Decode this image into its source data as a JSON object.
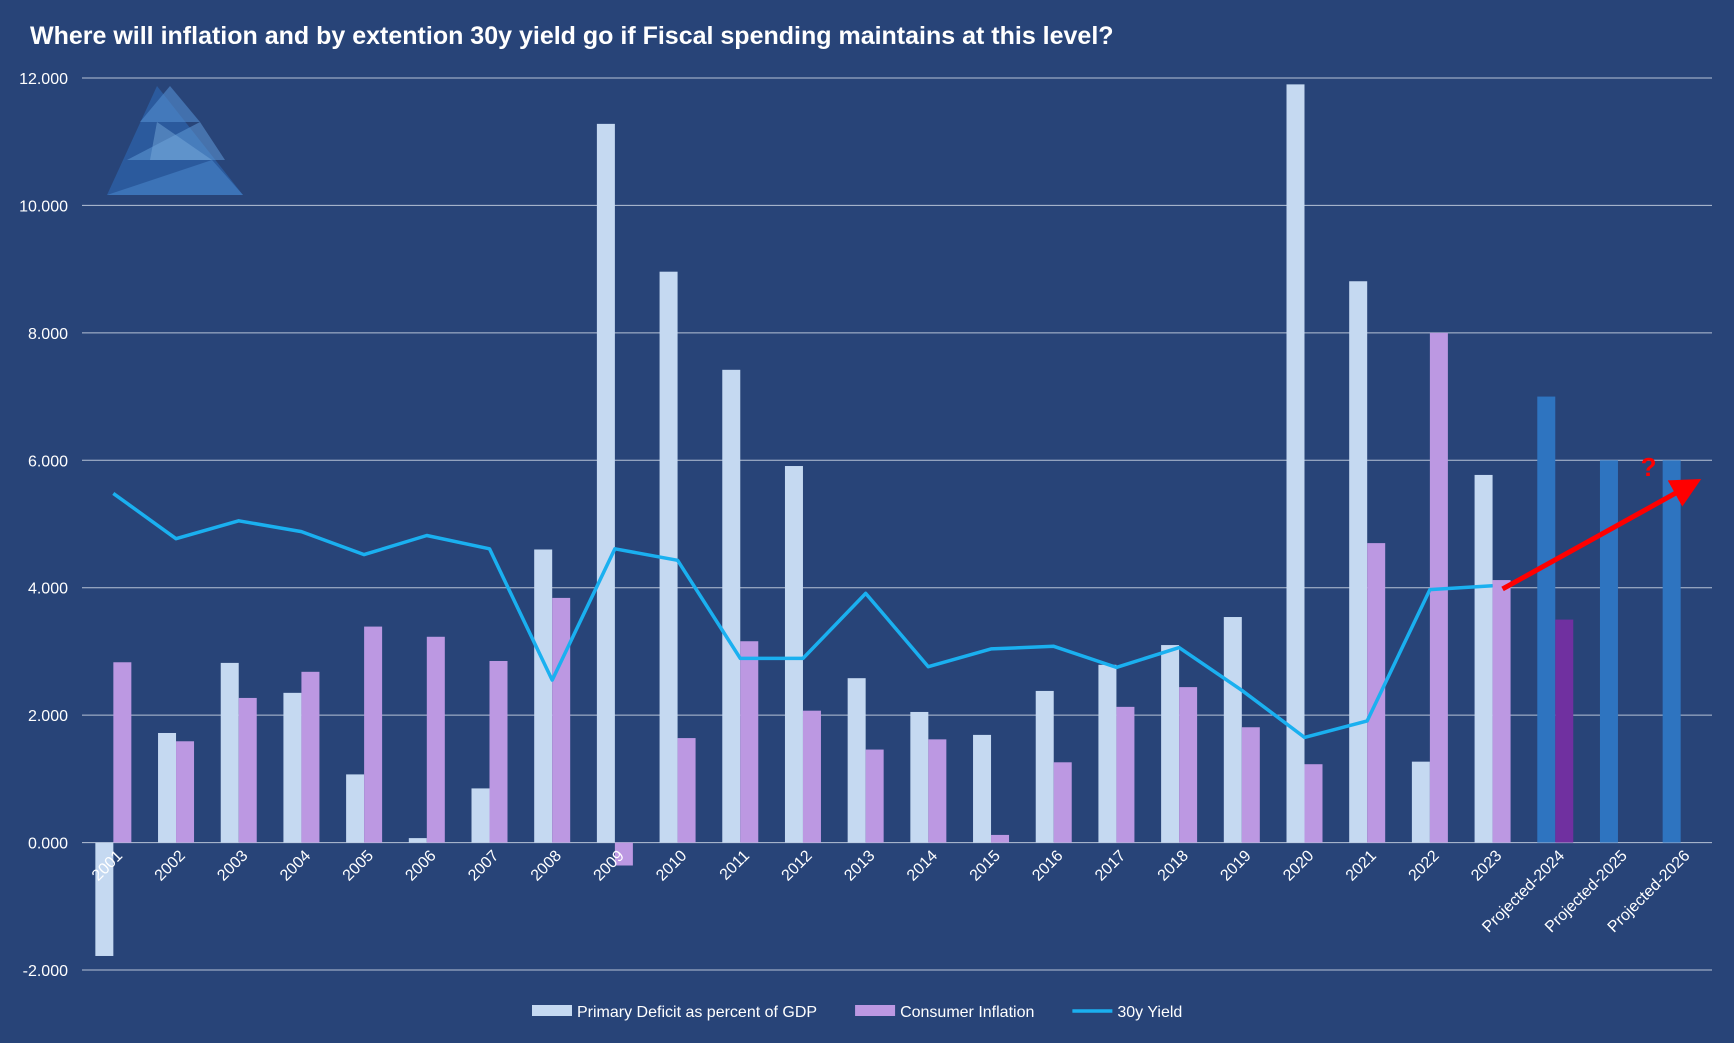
{
  "chart_data": {
    "type": "bar",
    "title": "Where will inflation and by extention 30y yield go if Fiscal spending maintains at this level?",
    "xlabel": "",
    "ylabel": "",
    "ylim": [
      -2,
      12
    ],
    "yticks": [
      -2,
      0,
      2,
      4,
      6,
      8,
      10,
      12
    ],
    "ytick_labels": [
      "-2.000",
      "0.000",
      "2.000",
      "4.000",
      "6.000",
      "8.000",
      "10.000",
      "12.000"
    ],
    "grid": true,
    "legend_position": "bottom",
    "categories": [
      "2001",
      "2002",
      "2003",
      "2004",
      "2005",
      "2006",
      "2007",
      "2008",
      "2009",
      "2010",
      "2011",
      "2012",
      "2013",
      "2014",
      "2015",
      "2016",
      "2017",
      "2018",
      "2019",
      "2020",
      "2021",
      "2022",
      "2023",
      "Projected-2024",
      "Projected-2025",
      "Projected-2026"
    ],
    "series": [
      {
        "name": "Primary Deficit as percent of GDP",
        "type": "bar",
        "color": "#c5d9f1",
        "projected_color": "#2e74c0",
        "values": [
          -1.78,
          1.72,
          2.82,
          2.35,
          1.07,
          0.07,
          0.85,
          4.6,
          11.28,
          8.96,
          7.42,
          5.91,
          2.58,
          2.05,
          1.69,
          2.38,
          2.79,
          3.1,
          3.54,
          11.9,
          8.81,
          1.27,
          5.77,
          7.0,
          6.0,
          6.0
        ]
      },
      {
        "name": "Consumer Inflation",
        "type": "bar",
        "color": "#bc98e2",
        "projected_color": "#7030a0",
        "values": [
          2.83,
          1.59,
          2.27,
          2.68,
          3.39,
          3.23,
          2.85,
          3.84,
          -0.36,
          1.64,
          3.16,
          2.07,
          1.46,
          1.62,
          0.12,
          1.26,
          2.13,
          2.44,
          1.81,
          1.23,
          4.7,
          8.0,
          4.12,
          3.5,
          null,
          null
        ]
      },
      {
        "name": "30y Yield",
        "type": "line",
        "color": "#1ab0f0",
        "values": [
          5.48,
          4.77,
          5.05,
          4.88,
          4.52,
          4.82,
          4.61,
          2.55,
          4.61,
          4.43,
          2.89,
          2.89,
          3.91,
          2.76,
          3.04,
          3.08,
          2.75,
          3.06,
          2.39,
          1.65,
          1.91,
          3.97,
          4.03,
          null,
          null,
          null
        ]
      }
    ],
    "annotations": [
      {
        "type": "arrow",
        "color": "#ff0000",
        "from": {
          "x": "2023",
          "y": 3.98
        },
        "to": {
          "x": "Projected-2026",
          "y": 5.65
        }
      },
      {
        "type": "text",
        "text": "?",
        "color": "#ff0000",
        "x": "Projected-2026",
        "y": 5.75
      }
    ]
  }
}
